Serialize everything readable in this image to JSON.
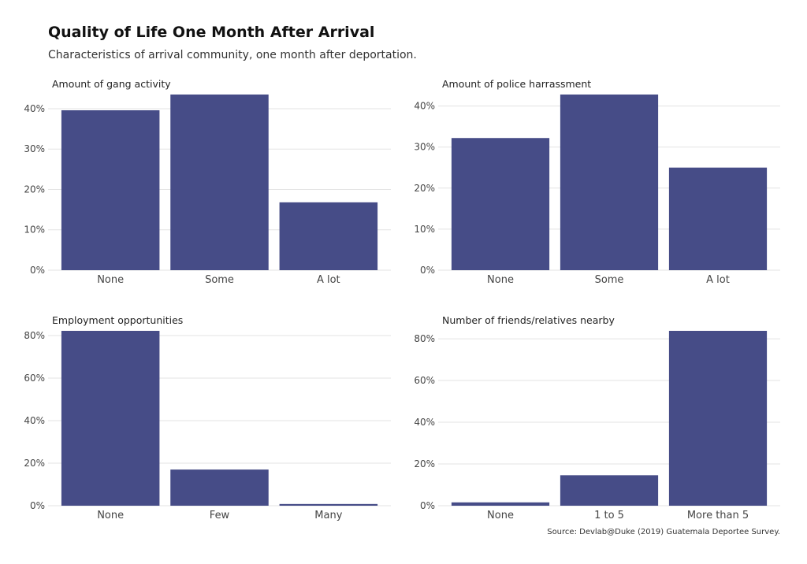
{
  "title": "Quality of Life One Month After Arrival",
  "subtitle": "Characteristics of arrival community, one month after deportation.",
  "caption": "Source: Devlab@Duke (2019) Guatemala Deportee Survey.",
  "colors": {
    "bar": "#464c87",
    "grid": "#e3e3e3"
  },
  "chart_data": [
    {
      "type": "bar",
      "title": "Amount of gang activity",
      "categories": [
        "None",
        "Some",
        "A lot"
      ],
      "values": [
        39.6,
        43.5,
        16.8
      ],
      "ylim": [
        0,
        43.5
      ],
      "yticks": [
        0,
        10,
        20,
        30,
        40
      ],
      "ytick_labels": [
        "0%",
        "10%",
        "20%",
        "30%",
        "40%"
      ]
    },
    {
      "type": "bar",
      "title": "Amount of police harrassment",
      "categories": [
        "None",
        "Some",
        "A lot"
      ],
      "values": [
        32.2,
        42.8,
        25.0
      ],
      "ylim": [
        0,
        42.8
      ],
      "yticks": [
        0,
        10,
        20,
        30,
        40
      ],
      "ytick_labels": [
        "0%",
        "10%",
        "20%",
        "30%",
        "40%"
      ]
    },
    {
      "type": "bar",
      "title": "Employment opportunities",
      "categories": [
        "None",
        "Few",
        "Many"
      ],
      "values": [
        82.2,
        17.0,
        0.8
      ],
      "ylim": [
        0,
        82.2
      ],
      "yticks": [
        0,
        20,
        40,
        60,
        80
      ],
      "ytick_labels": [
        "0%",
        "20%",
        "40%",
        "60%",
        "80%"
      ]
    },
    {
      "type": "bar",
      "title": "Number of friends/relatives nearby",
      "categories": [
        "None",
        "1 to 5",
        "More than 5"
      ],
      "values": [
        1.6,
        14.6,
        83.8
      ],
      "ylim": [
        0,
        83.8
      ],
      "yticks": [
        0,
        20,
        40,
        60,
        80
      ],
      "ytick_labels": [
        "0%",
        "20%",
        "40%",
        "60%",
        "80%"
      ]
    }
  ]
}
